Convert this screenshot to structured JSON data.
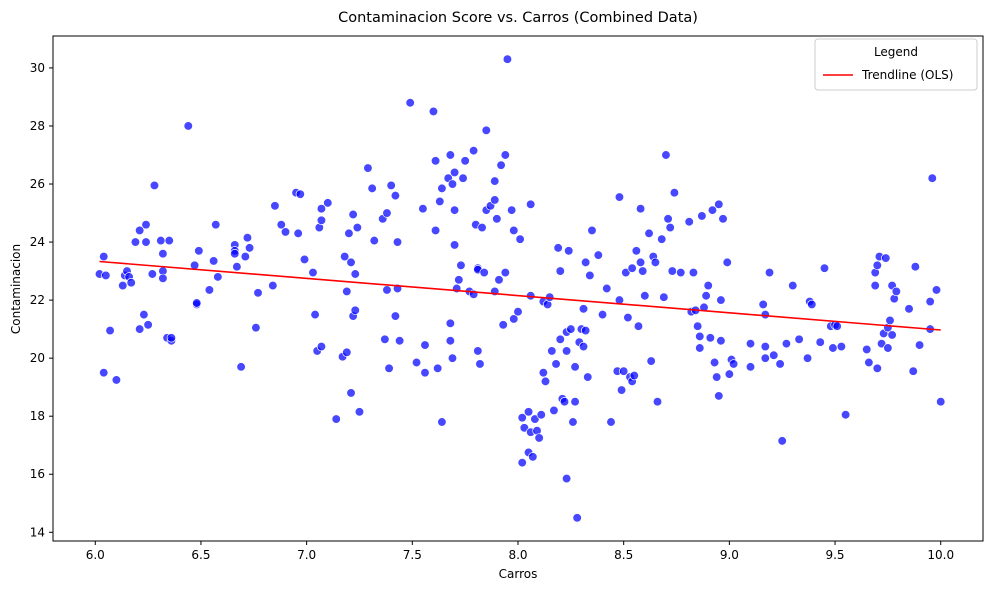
{
  "chart_data": {
    "type": "scatter",
    "title": "Contaminacion Score vs. Carros (Combined Data)",
    "xlabel": "Carros",
    "ylabel": "Contaminacion",
    "xlim": [
      5.8,
      10.2
    ],
    "ylim": [
      13.7,
      31.1
    ],
    "xticks": [
      6.0,
      6.5,
      7.0,
      7.5,
      8.0,
      8.5,
      9.0,
      9.5,
      10.0
    ],
    "xtick_labels": [
      "6.0",
      "6.5",
      "7.0",
      "7.5",
      "8.0",
      "8.5",
      "9.0",
      "9.5",
      "10.0"
    ],
    "yticks": [
      14,
      16,
      18,
      20,
      22,
      24,
      26,
      28,
      30
    ],
    "ytick_labels": [
      "14",
      "16",
      "18",
      "20",
      "22",
      "24",
      "26",
      "28",
      "30"
    ],
    "grid": false,
    "legend": {
      "title": "Legend",
      "placement": "top-right",
      "entries": [
        "Trendline (OLS)"
      ]
    },
    "scatter_color": "#0000ff",
    "trend_color": "#ff0000",
    "trendline": {
      "name": "Trendline (OLS)",
      "x": [
        6.02,
        10.0
      ],
      "y": [
        23.33,
        20.97
      ]
    },
    "points": [
      [
        6.02,
        22.9
      ],
      [
        6.04,
        23.5
      ],
      [
        6.04,
        19.5
      ],
      [
        6.05,
        22.85
      ],
      [
        6.07,
        20.95
      ],
      [
        6.1,
        19.25
      ],
      [
        6.13,
        22.5
      ],
      [
        6.14,
        22.85
      ],
      [
        6.15,
        23.0
      ],
      [
        6.16,
        22.8
      ],
      [
        6.17,
        22.6
      ],
      [
        6.19,
        24.0
      ],
      [
        6.21,
        24.4
      ],
      [
        6.21,
        21.0
      ],
      [
        6.23,
        21.5
      ],
      [
        6.24,
        24.6
      ],
      [
        6.24,
        24.0
      ],
      [
        6.25,
        21.15
      ],
      [
        6.27,
        22.9
      ],
      [
        6.28,
        25.95
      ],
      [
        6.31,
        24.05
      ],
      [
        6.32,
        23.0
      ],
      [
        6.32,
        23.6
      ],
      [
        6.32,
        22.75
      ],
      [
        6.34,
        20.7
      ],
      [
        6.35,
        24.05
      ],
      [
        6.36,
        20.6
      ],
      [
        6.36,
        20.7
      ],
      [
        6.44,
        28.0
      ],
      [
        6.47,
        23.2
      ],
      [
        6.48,
        21.85
      ],
      [
        6.48,
        21.9
      ],
      [
        6.49,
        23.7
      ],
      [
        6.54,
        22.35
      ],
      [
        6.56,
        23.35
      ],
      [
        6.57,
        24.6
      ],
      [
        6.58,
        22.8
      ],
      [
        6.66,
        23.9
      ],
      [
        6.66,
        23.7
      ],
      [
        6.66,
        23.6
      ],
      [
        6.67,
        23.15
      ],
      [
        6.69,
        19.7
      ],
      [
        6.71,
        23.5
      ],
      [
        6.72,
        24.15
      ],
      [
        6.73,
        23.8
      ],
      [
        6.76,
        21.05
      ],
      [
        6.77,
        22.25
      ],
      [
        6.84,
        22.5
      ],
      [
        6.85,
        25.25
      ],
      [
        6.88,
        24.6
      ],
      [
        6.9,
        24.35
      ],
      [
        6.95,
        25.7
      ],
      [
        6.96,
        24.3
      ],
      [
        6.97,
        25.65
      ],
      [
        6.99,
        23.4
      ],
      [
        7.03,
        22.95
      ],
      [
        7.04,
        21.5
      ],
      [
        7.05,
        20.25
      ],
      [
        7.06,
        24.5
      ],
      [
        7.07,
        25.15
      ],
      [
        7.07,
        24.75
      ],
      [
        7.07,
        20.4
      ],
      [
        7.1,
        25.35
      ],
      [
        7.14,
        17.9
      ],
      [
        7.17,
        20.05
      ],
      [
        7.18,
        23.5
      ],
      [
        7.19,
        22.3
      ],
      [
        7.19,
        20.2
      ],
      [
        7.2,
        24.3
      ],
      [
        7.21,
        23.3
      ],
      [
        7.21,
        18.8
      ],
      [
        7.22,
        21.45
      ],
      [
        7.22,
        24.95
      ],
      [
        7.23,
        22.9
      ],
      [
        7.23,
        21.65
      ],
      [
        7.24,
        24.5
      ],
      [
        7.25,
        18.15
      ],
      [
        7.29,
        26.55
      ],
      [
        7.31,
        25.85
      ],
      [
        7.32,
        24.05
      ],
      [
        7.36,
        24.8
      ],
      [
        7.37,
        20.65
      ],
      [
        7.38,
        25.0
      ],
      [
        7.38,
        22.35
      ],
      [
        7.39,
        19.65
      ],
      [
        7.4,
        25.95
      ],
      [
        7.42,
        25.6
      ],
      [
        7.42,
        21.45
      ],
      [
        7.43,
        24.0
      ],
      [
        7.43,
        22.4
      ],
      [
        7.44,
        20.6
      ],
      [
        7.49,
        28.8
      ],
      [
        7.52,
        19.85
      ],
      [
        7.55,
        25.15
      ],
      [
        7.56,
        20.45
      ],
      [
        7.56,
        19.5
      ],
      [
        7.6,
        28.5
      ],
      [
        7.61,
        26.8
      ],
      [
        7.61,
        24.4
      ],
      [
        7.62,
        19.65
      ],
      [
        7.63,
        25.4
      ],
      [
        7.64,
        25.85
      ],
      [
        7.64,
        17.8
      ],
      [
        7.67,
        26.2
      ],
      [
        7.68,
        27.0
      ],
      [
        7.68,
        20.6
      ],
      [
        7.68,
        21.2
      ],
      [
        7.69,
        20.0
      ],
      [
        7.69,
        26.0
      ],
      [
        7.7,
        26.4
      ],
      [
        7.7,
        23.9
      ],
      [
        7.7,
        25.1
      ],
      [
        7.71,
        22.4
      ],
      [
        7.72,
        22.7
      ],
      [
        7.73,
        23.2
      ],
      [
        7.74,
        26.2
      ],
      [
        7.75,
        26.8
      ],
      [
        7.77,
        22.3
      ],
      [
        7.79,
        27.15
      ],
      [
        7.79,
        22.2
      ],
      [
        7.8,
        24.6
      ],
      [
        7.81,
        23.1
      ],
      [
        7.81,
        23.05
      ],
      [
        7.81,
        20.25
      ],
      [
        7.82,
        19.8
      ],
      [
        7.83,
        24.5
      ],
      [
        7.84,
        22.95
      ],
      [
        7.85,
        27.85
      ],
      [
        7.85,
        25.1
      ],
      [
        7.87,
        25.25
      ],
      [
        7.89,
        26.1
      ],
      [
        7.89,
        25.45
      ],
      [
        7.89,
        22.3
      ],
      [
        7.9,
        24.8
      ],
      [
        7.91,
        22.7
      ],
      [
        7.92,
        26.65
      ],
      [
        7.93,
        21.15
      ],
      [
        7.94,
        27.0
      ],
      [
        7.94,
        22.95
      ],
      [
        7.95,
        30.3
      ],
      [
        7.97,
        25.1
      ],
      [
        7.98,
        24.4
      ],
      [
        7.98,
        21.35
      ],
      [
        8.0,
        21.6
      ],
      [
        8.01,
        24.1
      ],
      [
        8.02,
        17.95
      ],
      [
        8.02,
        16.4
      ],
      [
        8.03,
        17.6
      ],
      [
        8.05,
        18.15
      ],
      [
        8.05,
        16.75
      ],
      [
        8.06,
        25.3
      ],
      [
        8.06,
        22.15
      ],
      [
        8.06,
        17.45
      ],
      [
        8.07,
        16.6
      ],
      [
        8.08,
        17.9
      ],
      [
        8.09,
        17.5
      ],
      [
        8.1,
        17.25
      ],
      [
        8.11,
        18.05
      ],
      [
        8.12,
        21.95
      ],
      [
        8.12,
        19.5
      ],
      [
        8.13,
        19.2
      ],
      [
        8.14,
        21.85
      ],
      [
        8.15,
        22.1
      ],
      [
        8.16,
        20.25
      ],
      [
        8.17,
        18.2
      ],
      [
        8.18,
        19.8
      ],
      [
        8.19,
        23.8
      ],
      [
        8.2,
        20.65
      ],
      [
        8.2,
        23.0
      ],
      [
        8.21,
        18.6
      ],
      [
        8.22,
        18.5
      ],
      [
        8.23,
        20.25
      ],
      [
        8.23,
        15.85
      ],
      [
        8.23,
        20.9
      ],
      [
        8.24,
        23.7
      ],
      [
        8.25,
        21.0
      ],
      [
        8.26,
        17.8
      ],
      [
        8.27,
        18.5
      ],
      [
        8.27,
        19.7
      ],
      [
        8.28,
        14.5
      ],
      [
        8.29,
        20.55
      ],
      [
        8.3,
        21.0
      ],
      [
        8.31,
        20.4
      ],
      [
        8.31,
        21.7
      ],
      [
        8.32,
        20.95
      ],
      [
        8.32,
        23.3
      ],
      [
        8.33,
        19.35
      ],
      [
        8.34,
        22.85
      ],
      [
        8.35,
        24.4
      ],
      [
        8.38,
        23.55
      ],
      [
        8.4,
        21.5
      ],
      [
        8.42,
        22.4
      ],
      [
        8.44,
        17.8
      ],
      [
        8.47,
        19.55
      ],
      [
        8.48,
        25.55
      ],
      [
        8.48,
        22.0
      ],
      [
        8.49,
        18.9
      ],
      [
        8.5,
        19.55
      ],
      [
        8.51,
        22.95
      ],
      [
        8.52,
        21.4
      ],
      [
        8.53,
        19.35
      ],
      [
        8.54,
        23.1
      ],
      [
        8.54,
        19.2
      ],
      [
        8.55,
        19.4
      ],
      [
        8.56,
        23.7
      ],
      [
        8.57,
        21.1
      ],
      [
        8.58,
        25.15
      ],
      [
        8.58,
        23.3
      ],
      [
        8.59,
        23.0
      ],
      [
        8.6,
        22.15
      ],
      [
        8.62,
        24.3
      ],
      [
        8.63,
        19.9
      ],
      [
        8.64,
        23.5
      ],
      [
        8.65,
        23.3
      ],
      [
        8.66,
        18.5
      ],
      [
        8.68,
        24.1
      ],
      [
        8.69,
        22.1
      ],
      [
        8.7,
        27.0
      ],
      [
        8.71,
        24.8
      ],
      [
        8.72,
        24.5
      ],
      [
        8.73,
        23.0
      ],
      [
        8.74,
        25.7
      ],
      [
        8.77,
        22.95
      ],
      [
        8.81,
        24.7
      ],
      [
        8.82,
        21.6
      ],
      [
        8.83,
        22.95
      ],
      [
        8.84,
        21.65
      ],
      [
        8.85,
        21.1
      ],
      [
        8.86,
        20.75
      ],
      [
        8.86,
        20.35
      ],
      [
        8.87,
        24.9
      ],
      [
        8.88,
        21.75
      ],
      [
        8.89,
        22.15
      ],
      [
        8.9,
        22.5
      ],
      [
        8.91,
        20.7
      ],
      [
        8.92,
        25.1
      ],
      [
        8.93,
        19.85
      ],
      [
        8.94,
        19.35
      ],
      [
        8.95,
        25.3
      ],
      [
        8.95,
        18.7
      ],
      [
        8.96,
        22.0
      ],
      [
        8.96,
        20.6
      ],
      [
        8.97,
        24.8
      ],
      [
        8.99,
        23.3
      ],
      [
        9.0,
        19.45
      ],
      [
        9.01,
        19.95
      ],
      [
        9.02,
        19.8
      ],
      [
        9.1,
        20.5
      ],
      [
        9.1,
        19.7
      ],
      [
        9.16,
        21.85
      ],
      [
        9.17,
        21.5
      ],
      [
        9.17,
        20.0
      ],
      [
        9.17,
        20.4
      ],
      [
        9.19,
        22.95
      ],
      [
        9.21,
        20.1
      ],
      [
        9.24,
        19.8
      ],
      [
        9.25,
        17.15
      ],
      [
        9.27,
        20.5
      ],
      [
        9.3,
        22.5
      ],
      [
        9.33,
        20.65
      ],
      [
        9.37,
        20.0
      ],
      [
        9.38,
        21.95
      ],
      [
        9.39,
        21.85
      ],
      [
        9.43,
        20.55
      ],
      [
        9.45,
        23.1
      ],
      [
        9.48,
        21.1
      ],
      [
        9.49,
        20.35
      ],
      [
        9.5,
        21.15
      ],
      [
        9.51,
        21.1
      ],
      [
        9.53,
        20.4
      ],
      [
        9.55,
        18.05
      ],
      [
        9.65,
        20.3
      ],
      [
        9.66,
        19.85
      ],
      [
        9.69,
        22.95
      ],
      [
        9.69,
        22.5
      ],
      [
        9.7,
        23.2
      ],
      [
        9.7,
        19.65
      ],
      [
        9.71,
        23.5
      ],
      [
        9.72,
        20.5
      ],
      [
        9.73,
        20.85
      ],
      [
        9.74,
        23.45
      ],
      [
        9.75,
        20.35
      ],
      [
        9.75,
        21.05
      ],
      [
        9.76,
        21.3
      ],
      [
        9.77,
        22.5
      ],
      [
        9.77,
        20.8
      ],
      [
        9.78,
        22.05
      ],
      [
        9.79,
        22.3
      ],
      [
        9.85,
        21.7
      ],
      [
        9.87,
        19.55
      ],
      [
        9.88,
        23.15
      ],
      [
        9.9,
        20.45
      ],
      [
        9.95,
        21.95
      ],
      [
        9.95,
        21.0
      ],
      [
        9.96,
        26.2
      ],
      [
        9.98,
        22.35
      ],
      [
        10.0,
        18.5
      ]
    ]
  }
}
